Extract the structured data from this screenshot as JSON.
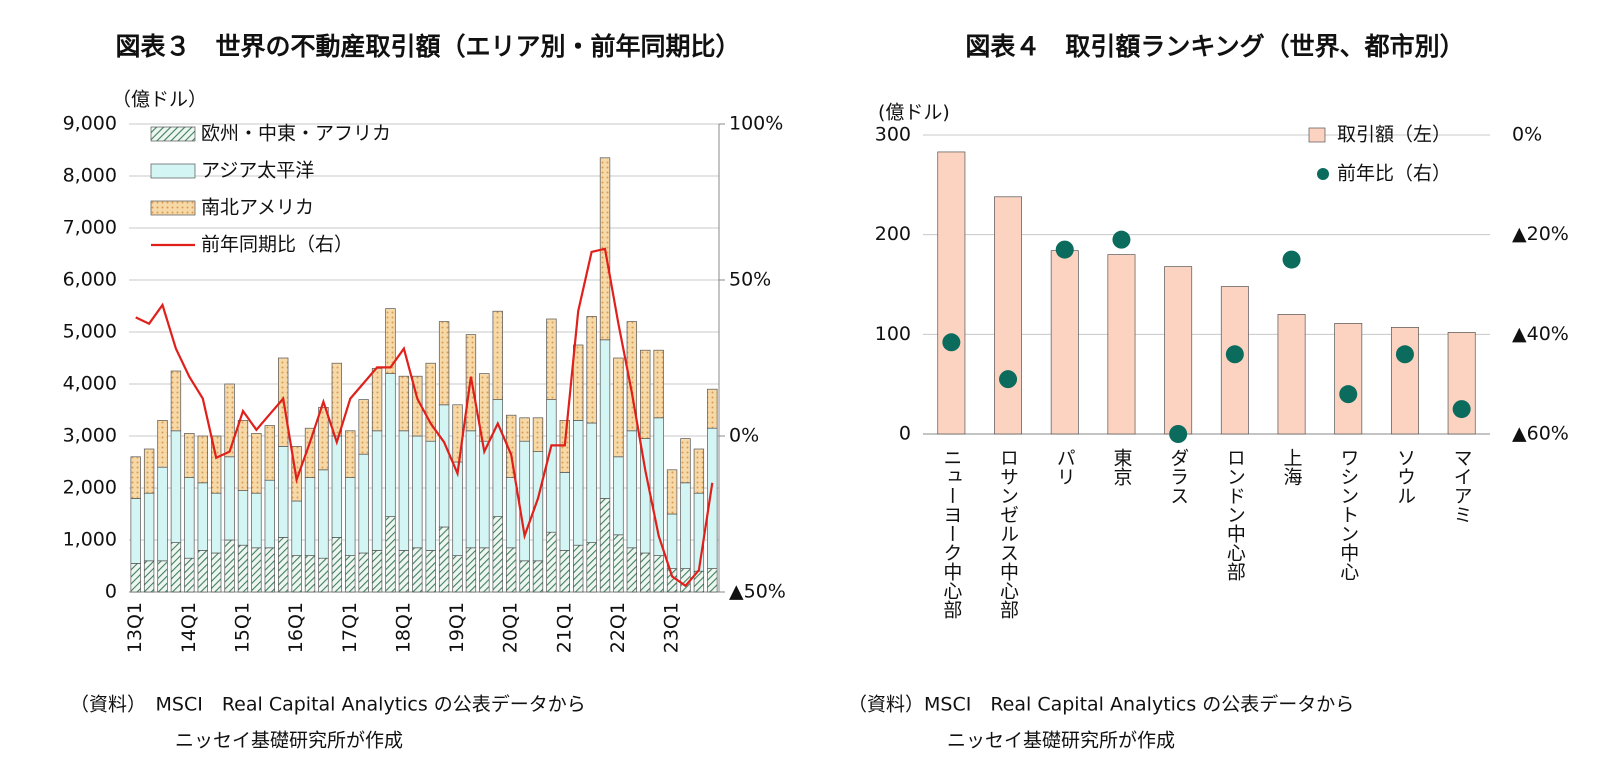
{
  "chart_data": [
    {
      "type": "bar",
      "stacked": true,
      "title": "図表３　世界の不動産取引額（エリア別・前年同期比）",
      "y_label": "（億ドル）",
      "categories": [
        "13Q1",
        null,
        null,
        null,
        "14Q1",
        null,
        null,
        null,
        "15Q1",
        null,
        null,
        null,
        "16Q1",
        null,
        null,
        null,
        "17Q1",
        null,
        null,
        null,
        "18Q1",
        null,
        null,
        null,
        "19Q1",
        null,
        null,
        null,
        "20Q1",
        null,
        null,
        null,
        "21Q1",
        null,
        null,
        null,
        "22Q1",
        null,
        null,
        null,
        "23Q1",
        null,
        null,
        null
      ],
      "series": [
        {
          "name": "欧州・中東・アフリカ",
          "color": "#3f7f5f",
          "pattern": "hatch",
          "values": [
            550,
            600,
            600,
            950,
            650,
            800,
            750,
            1000,
            900,
            850,
            850,
            1050,
            700,
            700,
            650,
            1050,
            700,
            750,
            800,
            1450,
            800,
            850,
            800,
            1250,
            700,
            850,
            850,
            1450,
            850,
            600,
            600,
            1150,
            800,
            900,
            950,
            1800,
            1100,
            850,
            750,
            700,
            450,
            450,
            400,
            450
          ]
        },
        {
          "name": "アジア太平洋",
          "color": "#d3f6f5",
          "pattern": "solid",
          "values": [
            1250,
            1300,
            1800,
            2150,
            1550,
            1300,
            1150,
            1600,
            1050,
            1050,
            1300,
            1750,
            1050,
            1500,
            1700,
            1950,
            1500,
            1900,
            2300,
            2750,
            2300,
            2150,
            2100,
            2350,
            1800,
            2250,
            2050,
            2250,
            1350,
            2300,
            2100,
            2550,
            1500,
            2400,
            2300,
            3050,
            1500,
            2250,
            2200,
            2650,
            1050,
            1650,
            1500,
            2700
          ]
        },
        {
          "name": "南北アメリカ",
          "color": "#f7d9a8",
          "pattern": "dots",
          "values": [
            800,
            850,
            900,
            1150,
            850,
            900,
            1100,
            1400,
            1350,
            1150,
            1050,
            1700,
            1050,
            950,
            1200,
            1400,
            900,
            1050,
            1200,
            1250,
            1050,
            1150,
            1500,
            1600,
            1100,
            1850,
            1300,
            1700,
            1200,
            450,
            650,
            1550,
            1000,
            1450,
            2050,
            3500,
            1900,
            2100,
            1700,
            1300,
            850,
            850,
            850,
            750
          ]
        },
        {
          "name": "前年同期比（右）",
          "type": "line",
          "axis": "y2",
          "color": "#e0201b",
          "values": [
            38,
            36,
            42,
            28,
            19,
            12,
            -7,
            -5,
            8,
            2,
            7,
            12,
            -14,
            -2,
            11,
            -2,
            12,
            17,
            22,
            22,
            28,
            12,
            4,
            -2,
            -12,
            19,
            -5,
            4,
            -6,
            -32,
            -20,
            -3,
            -3,
            40,
            59,
            60,
            36,
            14,
            -11,
            -32,
            -45,
            -48,
            -43,
            -15
          ]
        }
      ],
      "ylim": [
        0,
        9000
      ],
      "yticks": [
        0,
        {
          "value": 1000,
          "label": "1,000"
        },
        {
          "value": 2000,
          "label": "2,000"
        },
        {
          "value": 3000,
          "label": "3,000"
        },
        {
          "value": 4000,
          "label": "4,000"
        },
        {
          "value": 5000,
          "label": "5,000"
        },
        {
          "value": 6000,
          "label": "6,000"
        },
        {
          "value": 7000,
          "label": "7,000"
        },
        {
          "value": 8000,
          "label": "8,000"
        },
        {
          "value": 9000,
          "label": "9,000"
        }
      ],
      "y2lim": [
        -50,
        100
      ],
      "y2ticks": [
        {
          "value": -50,
          "label": "▲50%"
        },
        {
          "value": 0,
          "label": "0%"
        },
        {
          "value": 50,
          "label": "50%"
        },
        {
          "value": 100,
          "label": "100%"
        }
      ],
      "grid": true,
      "legend": "upper left",
      "note": [
        "（資料）　MSCI　Real Capital Analytics の公表データから",
        "ニッセイ基礎研究所が作成"
      ]
    },
    {
      "type": "bar",
      "title": "図表４　取引額ランキング（世界、都市別）",
      "y_label": "(億ドル)",
      "categories": [
        "ニューヨーク中心部",
        "ロサンゼルス中心部",
        "パリ",
        "東京",
        "ダラス",
        "ロンドン中心部",
        "上海",
        "ワシントン中心",
        "ソウル",
        "マイアミ"
      ],
      "series": [
        {
          "name": "取引額（左）",
          "color": "#fcd3c1",
          "pattern": "solid",
          "values": [
            283,
            238,
            184,
            180,
            168,
            148,
            120,
            111,
            107,
            102
          ]
        },
        {
          "name": "前年比（右）",
          "type": "scatter",
          "axis": "y2",
          "color": "#0b6b5d",
          "values": [
            -41.6,
            -49,
            -23,
            -21,
            -60,
            -44,
            -25,
            -52,
            -44,
            -55
          ]
        }
      ],
      "ylim": [
        0,
        300
      ],
      "yticks": [
        0,
        100,
        200,
        300
      ],
      "y2lim": [
        -60,
        0
      ],
      "y2ticks": [
        {
          "value": -60,
          "label": "▲60%"
        },
        {
          "value": -40,
          "label": "▲40%"
        },
        {
          "value": -20,
          "label": "▲20%"
        },
        {
          "value": 0,
          "label": "0%"
        }
      ],
      "grid": true,
      "legend": "upper right",
      "note": [
        "（資料）MSCI　Real Capital Analytics の公表データから",
        "ニッセイ基礎研究所が作成"
      ]
    }
  ]
}
